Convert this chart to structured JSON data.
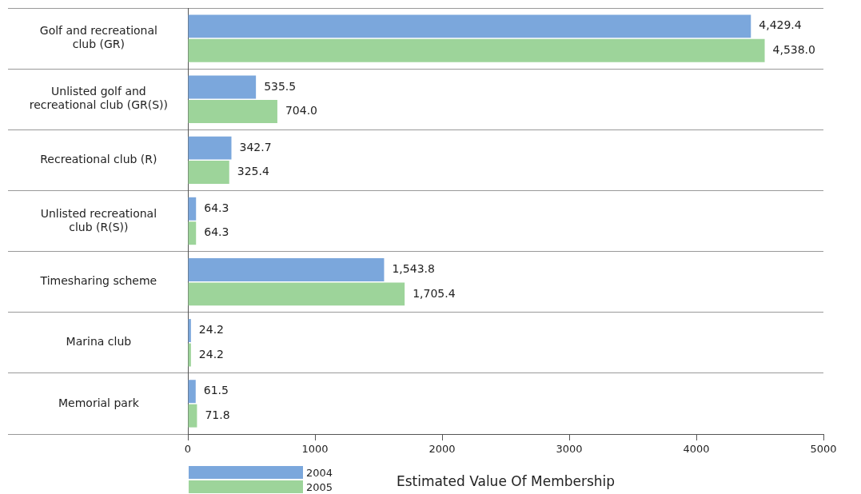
{
  "chart_data": {
    "type": "bar",
    "orientation": "horizontal",
    "xlabel": "Estimated Value Of Membership",
    "categories": [
      "Golf and recreational club (GR)",
      "Unlisted golf and recreational club (GR(S))",
      "Recreational club (R)",
      "Unlisted recreational club (R(S))",
      "Timesharing scheme",
      "Marina club",
      "Memorial park"
    ],
    "series": [
      {
        "name": "2004",
        "color": "#7ba7dc",
        "values": [
          4429.4,
          535.5,
          342.7,
          64.3,
          1543.8,
          24.2,
          61.5
        ],
        "value_labels": [
          "4,429.4",
          "535.5",
          "342.7",
          "64.3",
          "1,543.8",
          "24.2",
          "61.5"
        ]
      },
      {
        "name": "2005",
        "color": "#9dd49a",
        "values": [
          4538.0,
          704.0,
          325.4,
          64.3,
          1705.4,
          24.2,
          71.8
        ],
        "value_labels": [
          "4,538.0",
          "704.0",
          "325.4",
          "64.3",
          "1,705.4",
          "24.2",
          "71.8"
        ]
      }
    ],
    "xlim": [
      0,
      5000
    ],
    "xticks": [
      0,
      1000,
      2000,
      3000,
      4000,
      5000
    ],
    "grid": "y",
    "legend": "bottom left"
  }
}
